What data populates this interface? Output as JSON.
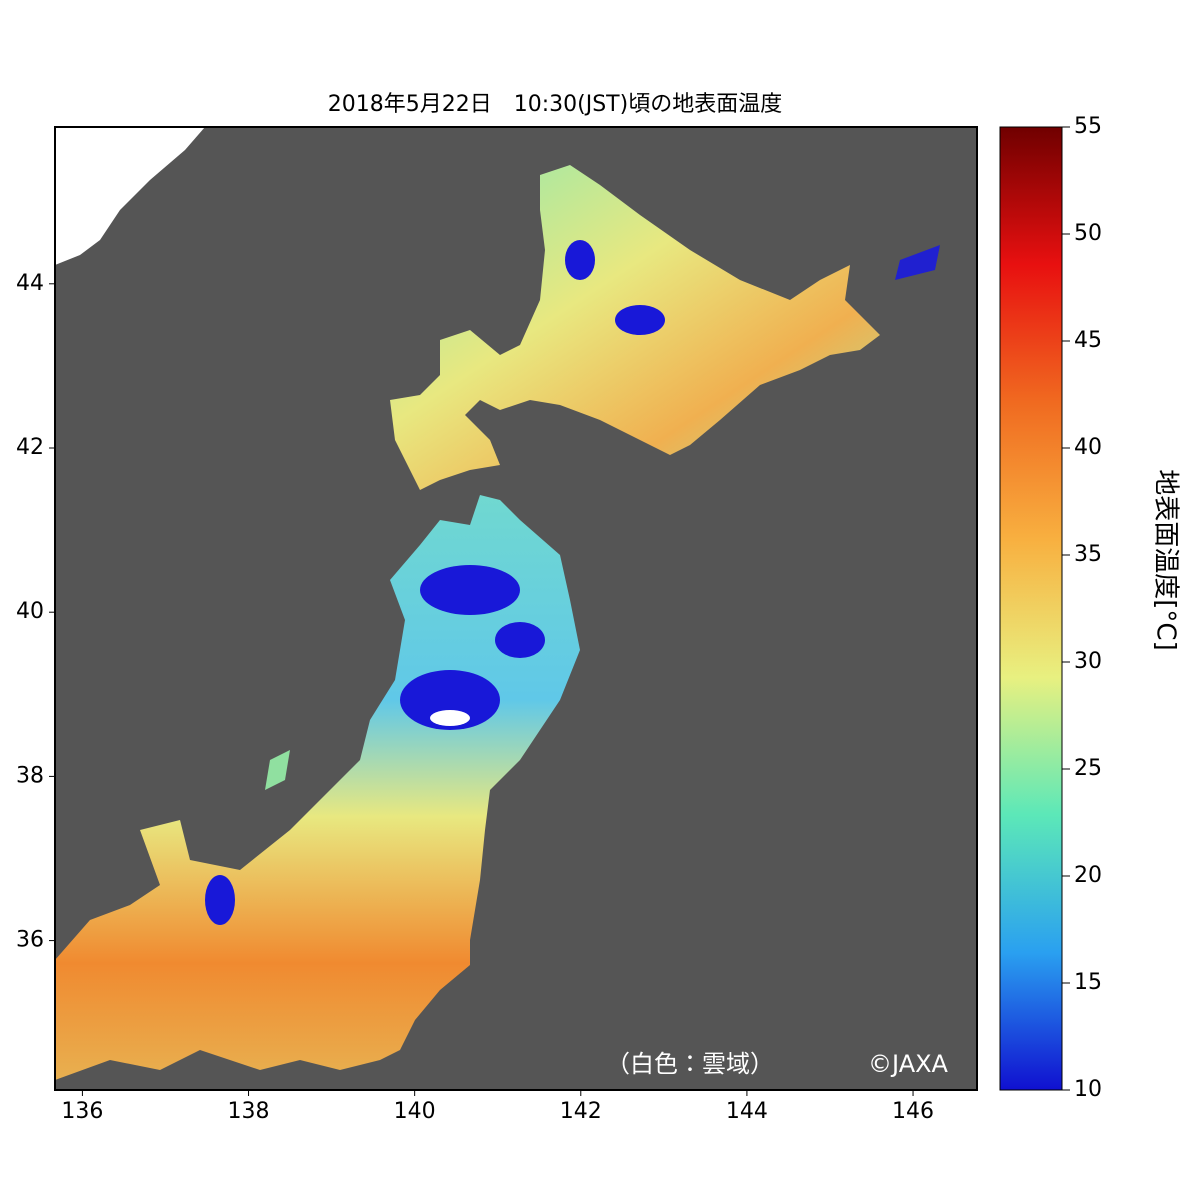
{
  "title": "2018年5月22日　10:30(JST)頃の地表面温度",
  "map": {
    "xlim": [
      135.67,
      146.77
    ],
    "ylim": [
      34.18,
      45.91
    ],
    "xticks": [
      136,
      138,
      140,
      142,
      144,
      146
    ],
    "yticks": [
      36,
      38,
      40,
      42,
      44
    ],
    "sea_color": "#555555"
  },
  "colorbar": {
    "label": "地表面温度[°C]",
    "lim": [
      10,
      55
    ],
    "ticks": [
      10,
      15,
      20,
      25,
      30,
      35,
      40,
      45,
      50,
      55
    ],
    "colors": [
      "#1010d0",
      "#2aa0f0",
      "#5ce8b8",
      "#e8f080",
      "#f8b040",
      "#f06a20",
      "#e81010",
      "#700000"
    ]
  },
  "annotations": {
    "cloud_note": "（白色：雲域）",
    "credit": "©JAXA"
  }
}
